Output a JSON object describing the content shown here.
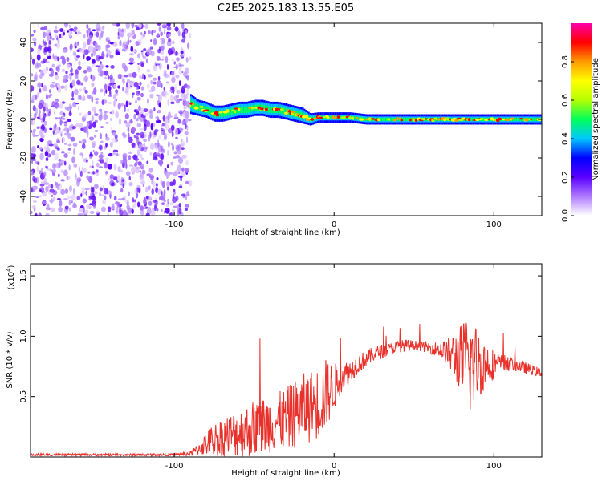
{
  "page_title": "C2E5.2025.183.13.55.E05",
  "chart_data": [
    {
      "type": "heatmap",
      "title": "C2E5.2025.183.13.55.E05",
      "xlabel": "Height of straight line (km)",
      "ylabel": "Frequency (Hz)",
      "xlim": [
        -190,
        130
      ],
      "ylim": [
        -50,
        50
      ],
      "x_ticks": [
        -100,
        0,
        100
      ],
      "x_tick_labels": [
        "-100",
        "0",
        "100"
      ],
      "y_ticks": [
        -40,
        -20,
        0,
        20,
        40
      ],
      "y_tick_labels": [
        "-40",
        "-20",
        "0",
        "20",
        "40"
      ],
      "colorbar": {
        "label": "Normalized spectral amplitude",
        "range": [
          0,
          1
        ],
        "ticks": [
          0,
          0.2,
          0.4,
          0.6,
          0.8
        ],
        "tick_labels": [
          "0.0",
          "0.2",
          "0.4",
          "0.6",
          "0.8"
        ],
        "colors": [
          "#ffffff",
          "#b07aff",
          "#5a00ff",
          "#0000ff",
          "#00c8ff",
          "#00ff5a",
          "#b4ff00",
          "#ffff00",
          "#ff9c00",
          "#ff0000",
          "#ff00aa"
        ]
      },
      "noise_region_x": [
        -190,
        -90
      ],
      "ridge": {
        "x": [
          -90,
          -85,
          -80,
          -75,
          -70,
          -65,
          -60,
          -55,
          -50,
          -45,
          -40,
          -35,
          -30,
          -25,
          -20,
          -15,
          -10,
          -5,
          0,
          5,
          10,
          20,
          40,
          60,
          80,
          100,
          130
        ],
        "freq": [
          8,
          6,
          5,
          3,
          3,
          4,
          5,
          5,
          6,
          6,
          5,
          5,
          4,
          3,
          2,
          0,
          1,
          1,
          1,
          1,
          1,
          0,
          0,
          0,
          0,
          0,
          0
        ],
        "halfwidth": [
          4,
          3,
          3,
          3,
          3,
          3,
          3,
          3,
          3,
          3,
          3,
          3,
          3,
          3,
          3,
          2,
          1.5,
          1.5,
          1.5,
          1.5,
          1.5,
          1.5,
          1.5,
          1.5,
          1.5,
          1.5,
          1.5
        ]
      }
    },
    {
      "type": "line",
      "title": "",
      "xlabel": "Height of straight line (km)",
      "ylabel": "SNR (10 * v/v)",
      "multiplier_label": "(x10",
      "multiplier_exp": "4",
      "xlim": [
        -190,
        130
      ],
      "ylim": [
        0,
        1.6
      ],
      "x_ticks": [
        -100,
        0,
        100
      ],
      "x_tick_labels": [
        "-100",
        "0",
        "100"
      ],
      "y_ticks": [
        0.5,
        1.0,
        1.5
      ],
      "y_tick_labels": [
        "0.5",
        "1.0",
        "1.5"
      ],
      "series": [
        {
          "color": "#e8312b",
          "x": [
            -190,
            -160,
            -130,
            -100,
            -90,
            -85,
            -80,
            -75,
            -70,
            -65,
            -60,
            -55,
            -50,
            -45,
            -40,
            -35,
            -30,
            -25,
            -20,
            -15,
            -10,
            -5,
            0,
            5,
            10,
            15,
            20,
            25,
            30,
            35,
            40,
            45,
            50,
            55,
            60,
            65,
            70,
            75,
            80,
            85,
            90,
            95,
            100,
            105,
            110,
            115,
            120,
            125,
            130
          ],
          "y": [
            0.02,
            0.02,
            0.02,
            0.02,
            0.03,
            0.07,
            0.12,
            0.16,
            0.18,
            0.2,
            0.22,
            0.24,
            0.26,
            0.28,
            0.3,
            0.32,
            0.34,
            0.38,
            0.42,
            0.45,
            0.48,
            0.55,
            0.6,
            0.68,
            0.72,
            0.78,
            0.82,
            0.86,
            0.88,
            0.9,
            0.92,
            0.93,
            0.93,
            0.92,
            0.91,
            0.9,
            0.88,
            0.86,
            0.84,
            0.82,
            0.8,
            0.79,
            0.78,
            0.78,
            0.78,
            0.76,
            0.74,
            0.72,
            0.7
          ],
          "noise": [
            0.01,
            0.01,
            0.01,
            0.01,
            0.02,
            0.05,
            0.1,
            0.14,
            0.16,
            0.18,
            0.2,
            0.22,
            0.24,
            0.24,
            0.24,
            0.24,
            0.26,
            0.28,
            0.3,
            0.3,
            0.3,
            0.3,
            0.2,
            0.12,
            0.1,
            0.08,
            0.07,
            0.06,
            0.06,
            0.05,
            0.05,
            0.05,
            0.04,
            0.04,
            0.05,
            0.06,
            0.1,
            0.2,
            0.3,
            0.45,
            0.3,
            0.2,
            0.12,
            0.08,
            0.06,
            0.05,
            0.05,
            0.04,
            0.04
          ]
        }
      ]
    }
  ]
}
